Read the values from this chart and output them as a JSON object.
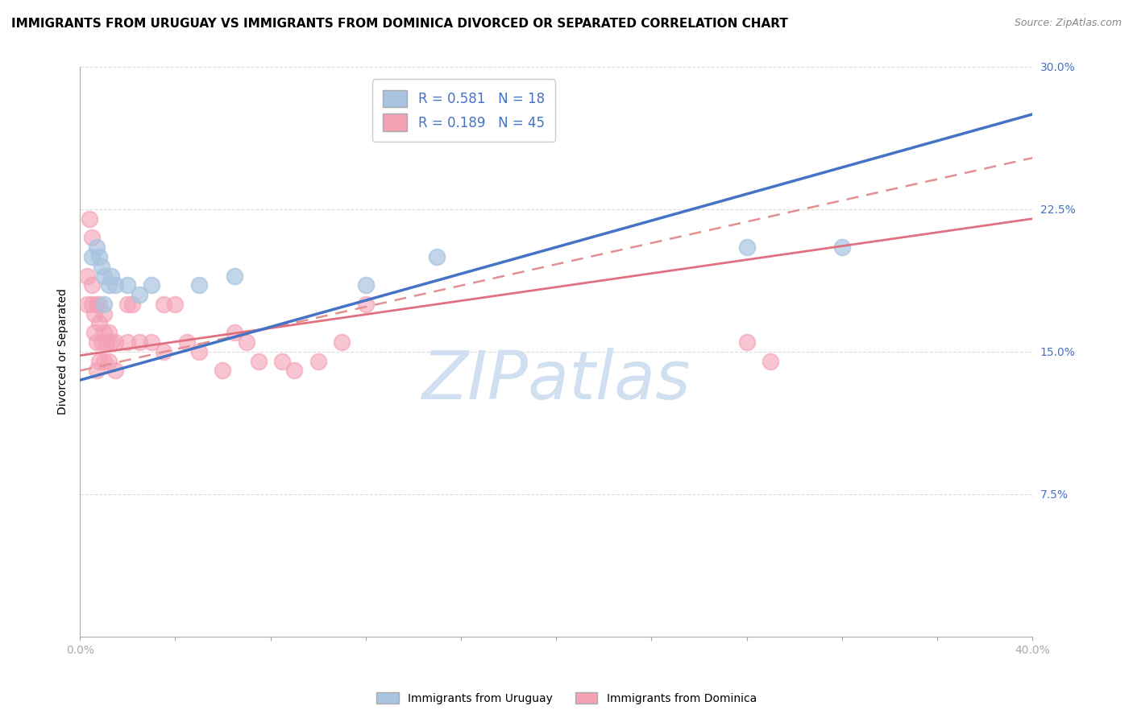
{
  "title": "IMMIGRANTS FROM URUGUAY VS IMMIGRANTS FROM DOMINICA DIVORCED OR SEPARATED CORRELATION CHART",
  "source_text": "Source: ZipAtlas.com",
  "ylabel": "Divorced or Separated",
  "xlim": [
    0.0,
    0.4
  ],
  "ylim": [
    0.0,
    0.3
  ],
  "xticks": [
    0.0,
    0.04,
    0.08,
    0.12,
    0.16,
    0.2,
    0.24,
    0.28,
    0.32,
    0.36,
    0.4
  ],
  "yticks": [
    0.0,
    0.075,
    0.15,
    0.225,
    0.3
  ],
  "ytick_labels": [
    "",
    "7.5%",
    "15.0%",
    "22.5%",
    "30.0%"
  ],
  "legend_r1": "R = 0.581",
  "legend_n1": "N = 18",
  "legend_r2": "R = 0.189",
  "legend_n2": "N = 45",
  "uruguay_color": "#a8c4e0",
  "dominica_color": "#f4a0b5",
  "uruguay_line_color": "#4472c4",
  "dominica_line_color": "#e07080",
  "dominica_dash_color": "#e09090",
  "watermark_text": "ZIPatlas",
  "watermark_color": "#d0e0f0",
  "background_color": "#ffffff",
  "uruguay_x": [
    0.005,
    0.007,
    0.008,
    0.009,
    0.01,
    0.01,
    0.012,
    0.013,
    0.015,
    0.02,
    0.025,
    0.03,
    0.05,
    0.065,
    0.12,
    0.15,
    0.28,
    0.32
  ],
  "uruguay_y": [
    0.2,
    0.205,
    0.2,
    0.195,
    0.175,
    0.19,
    0.185,
    0.19,
    0.185,
    0.185,
    0.18,
    0.185,
    0.185,
    0.19,
    0.185,
    0.2,
    0.205,
    0.205
  ],
  "dominica_x": [
    0.003,
    0.003,
    0.004,
    0.005,
    0.005,
    0.005,
    0.006,
    0.006,
    0.007,
    0.007,
    0.007,
    0.008,
    0.008,
    0.008,
    0.009,
    0.01,
    0.01,
    0.01,
    0.011,
    0.012,
    0.012,
    0.013,
    0.015,
    0.015,
    0.02,
    0.02,
    0.022,
    0.025,
    0.03,
    0.035,
    0.035,
    0.04,
    0.045,
    0.05,
    0.06,
    0.065,
    0.07,
    0.075,
    0.085,
    0.09,
    0.1,
    0.11,
    0.12,
    0.28,
    0.29
  ],
  "dominica_y": [
    0.175,
    0.19,
    0.22,
    0.175,
    0.185,
    0.21,
    0.16,
    0.17,
    0.14,
    0.155,
    0.175,
    0.145,
    0.165,
    0.175,
    0.155,
    0.145,
    0.16,
    0.17,
    0.155,
    0.145,
    0.16,
    0.155,
    0.14,
    0.155,
    0.155,
    0.175,
    0.175,
    0.155,
    0.155,
    0.15,
    0.175,
    0.175,
    0.155,
    0.15,
    0.14,
    0.16,
    0.155,
    0.145,
    0.145,
    0.14,
    0.145,
    0.155,
    0.175,
    0.155,
    0.145
  ],
  "title_fontsize": 11,
  "axis_label_fontsize": 10,
  "tick_fontsize": 10,
  "legend_fontsize": 12
}
